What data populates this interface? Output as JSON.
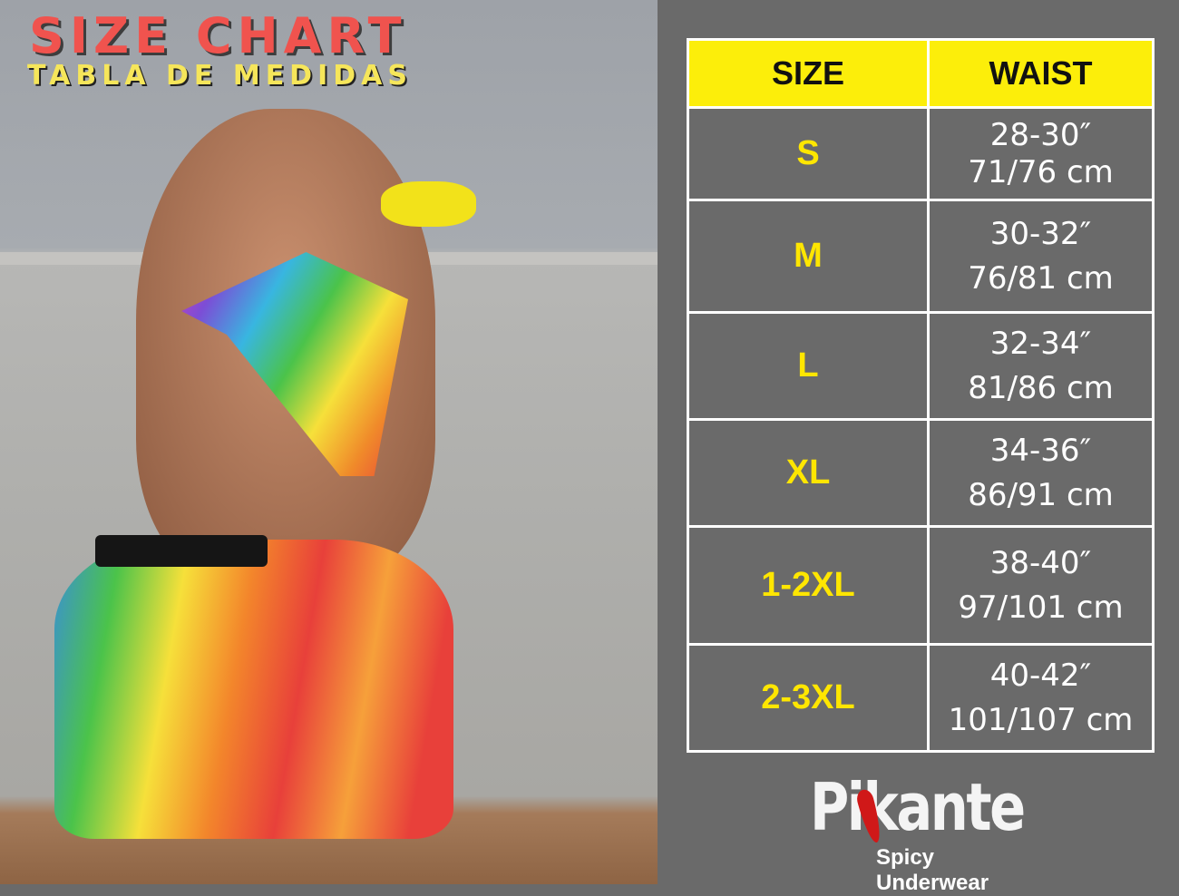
{
  "title": "SIZE CHART",
  "subtitle": "TABLA DE MEDIDAS",
  "table": {
    "headers": [
      "SIZE",
      "WAIST"
    ],
    "rows": [
      {
        "size": "S",
        "in": "28-30″",
        "cm": "71/76  cm"
      },
      {
        "size": "M",
        "in": "30-32″",
        "cm": "76/81 cm"
      },
      {
        "size": "L",
        "in": "32-34″",
        "cm": "81/86 cm"
      },
      {
        "size": "XL",
        "in": "34-36″",
        "cm": "86/91 cm"
      },
      {
        "size": "1-2XL",
        "in": "38-40″",
        "cm": "97/101 cm"
      },
      {
        "size": "2-3XL",
        "in": "40-42″",
        "cm": "101/107 cm"
      }
    ]
  },
  "brand": {
    "name": "Pikante",
    "tagline": "Spicy Underwear"
  },
  "colors": {
    "header_bg": "#fcee0a",
    "size_text": "#ffe600",
    "panel_bg": "#6a6a6a",
    "title": "#f0534e",
    "subtitle": "#f6e65a"
  }
}
